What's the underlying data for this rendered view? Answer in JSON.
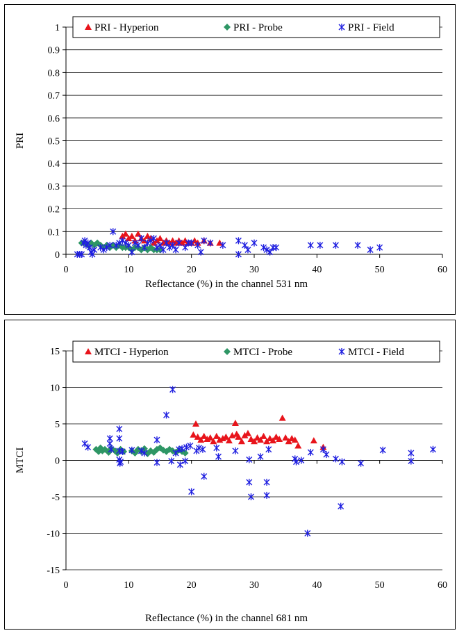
{
  "chart_data": [
    {
      "type": "scatter",
      "xlabel": "Reflectance (%) in the channel 531 nm",
      "ylabel": "PRI",
      "xlim": [
        0,
        60
      ],
      "ylim": [
        0,
        1
      ],
      "xticks": [
        "0",
        "10",
        "20",
        "30",
        "40",
        "50",
        "60"
      ],
      "yticks": [
        "0",
        "0.1",
        "0.2",
        "0.3",
        "0.4",
        "0.5",
        "0.6",
        "0.7",
        "0.8",
        "0.9",
        "1"
      ],
      "ytick_values": [
        0,
        0.1,
        0.2,
        0.3,
        0.4,
        0.5,
        0.6,
        0.7,
        0.8,
        0.9,
        1
      ],
      "xtick_values": [
        0,
        10,
        20,
        30,
        40,
        50,
        60
      ],
      "grid": "horizontal",
      "legend_position": "top",
      "series": [
        {
          "name": "PRI - Hyperion",
          "marker": "triangle",
          "color": "#e8141b",
          "points": [
            [
              9,
              0.08
            ],
            [
              9.5,
              0.09
            ],
            [
              10,
              0.07
            ],
            [
              10.5,
              0.08
            ],
            [
              11,
              0.06
            ],
            [
              11.5,
              0.09
            ],
            [
              12,
              0.07
            ],
            [
              12.5,
              0.06
            ],
            [
              13,
              0.08
            ],
            [
              13.5,
              0.07
            ],
            [
              14,
              0.05
            ],
            [
              14.5,
              0.06
            ],
            [
              15,
              0.07
            ],
            [
              15.5,
              0.05
            ],
            [
              16,
              0.06
            ],
            [
              16.5,
              0.05
            ],
            [
              17,
              0.06
            ],
            [
              17.5,
              0.05
            ],
            [
              18,
              0.06
            ],
            [
              18.5,
              0.05
            ],
            [
              19,
              0.06
            ],
            [
              19.5,
              0.05
            ],
            [
              20,
              0.05
            ],
            [
              20.5,
              0.06
            ],
            [
              21,
              0.05
            ],
            [
              22,
              0.06
            ],
            [
              23,
              0.05
            ],
            [
              24.5,
              0.05
            ]
          ]
        },
        {
          "name": "PRI - Probe",
          "marker": "diamond",
          "color": "#2e9665",
          "points": [
            [
              2.5,
              0.05
            ],
            [
              3,
              0.05
            ],
            [
              3.5,
              0.04
            ],
            [
              4,
              0.05
            ],
            [
              4.5,
              0.04
            ],
            [
              5,
              0.05
            ],
            [
              5.5,
              0.04
            ],
            [
              6,
              0.03
            ],
            [
              6.5,
              0.04
            ],
            [
              7,
              0.03
            ],
            [
              7.5,
              0.04
            ],
            [
              8,
              0.03
            ],
            [
              8.5,
              0.04
            ],
            [
              9,
              0.03
            ],
            [
              9.5,
              0.03
            ],
            [
              10,
              0.03
            ],
            [
              10.5,
              0.02
            ],
            [
              11,
              0.03
            ],
            [
              11.5,
              0.03
            ],
            [
              12,
              0.02
            ],
            [
              12.5,
              0.03
            ],
            [
              13,
              0.02
            ],
            [
              13.5,
              0.03
            ],
            [
              14,
              0.02
            ],
            [
              14.5,
              0.02
            ],
            [
              15,
              0.02
            ]
          ]
        },
        {
          "name": "PRI - Field",
          "marker": "asterisk",
          "color": "#1f1fe0",
          "points": [
            [
              1.8,
              0.0
            ],
            [
              2.2,
              0.0
            ],
            [
              2.5,
              0.0
            ],
            [
              2.8,
              0.05
            ],
            [
              3,
              0.06
            ],
            [
              3.2,
              0.04
            ],
            [
              3.5,
              0.05
            ],
            [
              3.8,
              0.03
            ],
            [
              4,
              0.01
            ],
            [
              4.2,
              0.0
            ],
            [
              4.5,
              0.02
            ],
            [
              5.5,
              0.03
            ],
            [
              6,
              0.02
            ],
            [
              6.5,
              0.03
            ],
            [
              7,
              0.04
            ],
            [
              7.5,
              0.1
            ],
            [
              8,
              0.04
            ],
            [
              8.5,
              0.05
            ],
            [
              9,
              0.06
            ],
            [
              9.5,
              0.05
            ],
            [
              10,
              0.04
            ],
            [
              10.5,
              0.01
            ],
            [
              11,
              0.05
            ],
            [
              11.5,
              0.04
            ],
            [
              12,
              0.07
            ],
            [
              12.5,
              0.03
            ],
            [
              13,
              0.05
            ],
            [
              13.5,
              0.06
            ],
            [
              14,
              0.07
            ],
            [
              14.5,
              0.03
            ],
            [
              15,
              0.04
            ],
            [
              15.5,
              0.02
            ],
            [
              16,
              0.05
            ],
            [
              16.5,
              0.03
            ],
            [
              17,
              0.04
            ],
            [
              17.5,
              0.02
            ],
            [
              18,
              0.05
            ],
            [
              19,
              0.03
            ],
            [
              19.5,
              0.05
            ],
            [
              20,
              0.05
            ],
            [
              21,
              0.04
            ],
            [
              21.5,
              0.01
            ],
            [
              22,
              0.06
            ],
            [
              23,
              0.05
            ],
            [
              25,
              0.04
            ],
            [
              27.5,
              0.06
            ],
            [
              27.5,
              0.0
            ],
            [
              28.5,
              0.04
            ],
            [
              29,
              0.02
            ],
            [
              30,
              0.05
            ],
            [
              31.5,
              0.03
            ],
            [
              32,
              0.02
            ],
            [
              32.5,
              0.01
            ],
            [
              33,
              0.03
            ],
            [
              33.5,
              0.03
            ],
            [
              39,
              0.04
            ],
            [
              40.5,
              0.04
            ],
            [
              43,
              0.04
            ],
            [
              46.5,
              0.04
            ],
            [
              48.5,
              0.02
            ],
            [
              50,
              0.03
            ]
          ]
        }
      ]
    },
    {
      "type": "scatter",
      "xlabel": "Reflectance (%) in the channel 681 nm",
      "ylabel": "MTCI",
      "xlim": [
        0,
        60
      ],
      "ylim": [
        -15,
        15
      ],
      "xticks": [
        "0",
        "10",
        "20",
        "30",
        "40",
        "50",
        "60"
      ],
      "yticks": [
        "-15",
        "-10",
        "-5",
        "0",
        "5",
        "10",
        "15"
      ],
      "ytick_values": [
        -15,
        -10,
        -5,
        0,
        5,
        10,
        15
      ],
      "xtick_values": [
        0,
        10,
        20,
        30,
        40,
        50,
        60
      ],
      "grid": "horizontal",
      "legend_position": "top",
      "series": [
        {
          "name": "MTCI - Hyperion",
          "marker": "triangle",
          "color": "#e8141b",
          "points": [
            [
              20.3,
              3.5
            ],
            [
              20.7,
              5.0
            ],
            [
              21,
              3.2
            ],
            [
              21.5,
              2.8
            ],
            [
              22,
              3.3
            ],
            [
              22.5,
              2.9
            ],
            [
              23,
              3.1
            ],
            [
              23.5,
              2.6
            ],
            [
              24,
              3.3
            ],
            [
              24.5,
              2.8
            ],
            [
              25,
              3.0
            ],
            [
              25.5,
              3.2
            ],
            [
              26,
              2.7
            ],
            [
              26.5,
              3.4
            ],
            [
              27,
              5.1
            ],
            [
              27.2,
              3.6
            ],
            [
              27.5,
              3.2
            ],
            [
              28,
              2.6
            ],
            [
              28.5,
              3.4
            ],
            [
              29,
              3.7
            ],
            [
              29.5,
              2.9
            ],
            [
              30,
              2.6
            ],
            [
              30.5,
              3.1
            ],
            [
              31,
              2.8
            ],
            [
              31.5,
              3.3
            ],
            [
              32,
              2.6
            ],
            [
              32.5,
              3.0
            ],
            [
              33,
              2.7
            ],
            [
              33.5,
              3.2
            ],
            [
              34,
              2.9
            ],
            [
              34.5,
              5.8
            ],
            [
              35,
              3.1
            ],
            [
              35.5,
              2.6
            ],
            [
              36,
              3.0
            ],
            [
              36.5,
              2.8
            ],
            [
              37,
              2.0
            ],
            [
              39.5,
              2.7
            ],
            [
              41,
              1.8
            ]
          ]
        },
        {
          "name": "MTCI - Probe",
          "marker": "diamond",
          "color": "#2e9665",
          "points": [
            [
              4.8,
              1.5
            ],
            [
              5.2,
              1.2
            ],
            [
              5.5,
              1.7
            ],
            [
              5.8,
              1.3
            ],
            [
              6.2,
              1.5
            ],
            [
              6.8,
              1.1
            ],
            [
              7.2,
              1.6
            ],
            [
              7.8,
              1.3
            ],
            [
              8.2,
              1.0
            ],
            [
              8.7,
              1.5
            ],
            [
              9.2,
              1.2
            ],
            [
              10.5,
              1.3
            ],
            [
              11,
              1.0
            ],
            [
              11.5,
              1.5
            ],
            [
              12,
              1.2
            ],
            [
              12.5,
              1.6
            ],
            [
              13,
              0.9
            ],
            [
              13.5,
              1.3
            ],
            [
              14,
              1.1
            ],
            [
              14.5,
              1.5
            ],
            [
              15,
              1.7
            ],
            [
              15.5,
              1.4
            ],
            [
              16,
              1.2
            ],
            [
              16.5,
              1.5
            ],
            [
              17,
              1.3
            ],
            [
              17.5,
              1.1
            ],
            [
              18,
              1.4
            ],
            [
              18.5,
              1.2
            ],
            [
              19,
              1.0
            ]
          ]
        },
        {
          "name": "MTCI - Field",
          "marker": "asterisk",
          "color": "#1f1fe0",
          "points": [
            [
              3,
              2.3
            ],
            [
              3.5,
              1.8
            ],
            [
              7,
              3.0
            ],
            [
              7,
              2.3
            ],
            [
              7.2,
              1.5
            ],
            [
              8.5,
              4.3
            ],
            [
              8.5,
              3.0
            ],
            [
              8.5,
              1.3
            ],
            [
              8.5,
              0.1
            ],
            [
              8.6,
              -0.4
            ],
            [
              8.7,
              -0.2
            ],
            [
              9,
              1.2
            ],
            [
              10.5,
              1.4
            ],
            [
              12,
              1.3
            ],
            [
              12.5,
              1.0
            ],
            [
              14.5,
              2.8
            ],
            [
              14.5,
              -0.3
            ],
            [
              16,
              6.2
            ],
            [
              16.8,
              -0.1
            ],
            [
              17,
              9.7
            ],
            [
              17.5,
              1.0
            ],
            [
              18,
              1.5
            ],
            [
              18.2,
              -0.6
            ],
            [
              18.5,
              1.6
            ],
            [
              19,
              -0.1
            ],
            [
              19.2,
              1.8
            ],
            [
              19.8,
              2.0
            ],
            [
              20,
              -4.3
            ],
            [
              20.8,
              1.3
            ],
            [
              21.2,
              1.7
            ],
            [
              21.8,
              1.5
            ],
            [
              22,
              -2.2
            ],
            [
              24,
              1.7
            ],
            [
              24.3,
              0.5
            ],
            [
              27,
              1.3
            ],
            [
              29.2,
              0.1
            ],
            [
              29.2,
              -3.0
            ],
            [
              29.5,
              -5.0
            ],
            [
              31,
              0.5
            ],
            [
              32,
              -3.0
            ],
            [
              32,
              -4.8
            ],
            [
              32.3,
              1.5
            ],
            [
              36.5,
              0.2
            ],
            [
              36.7,
              -0.2
            ],
            [
              37.5,
              0.0
            ],
            [
              38.5,
              -10.0
            ],
            [
              39,
              1.1
            ],
            [
              41,
              1.5
            ],
            [
              41.5,
              0.8
            ],
            [
              43,
              0.2
            ],
            [
              43.8,
              -6.3
            ],
            [
              44,
              -0.2
            ],
            [
              47,
              -0.4
            ],
            [
              50.5,
              1.4
            ],
            [
              55,
              -0.1
            ],
            [
              55,
              1.0
            ],
            [
              58.5,
              1.5
            ]
          ]
        }
      ]
    }
  ]
}
